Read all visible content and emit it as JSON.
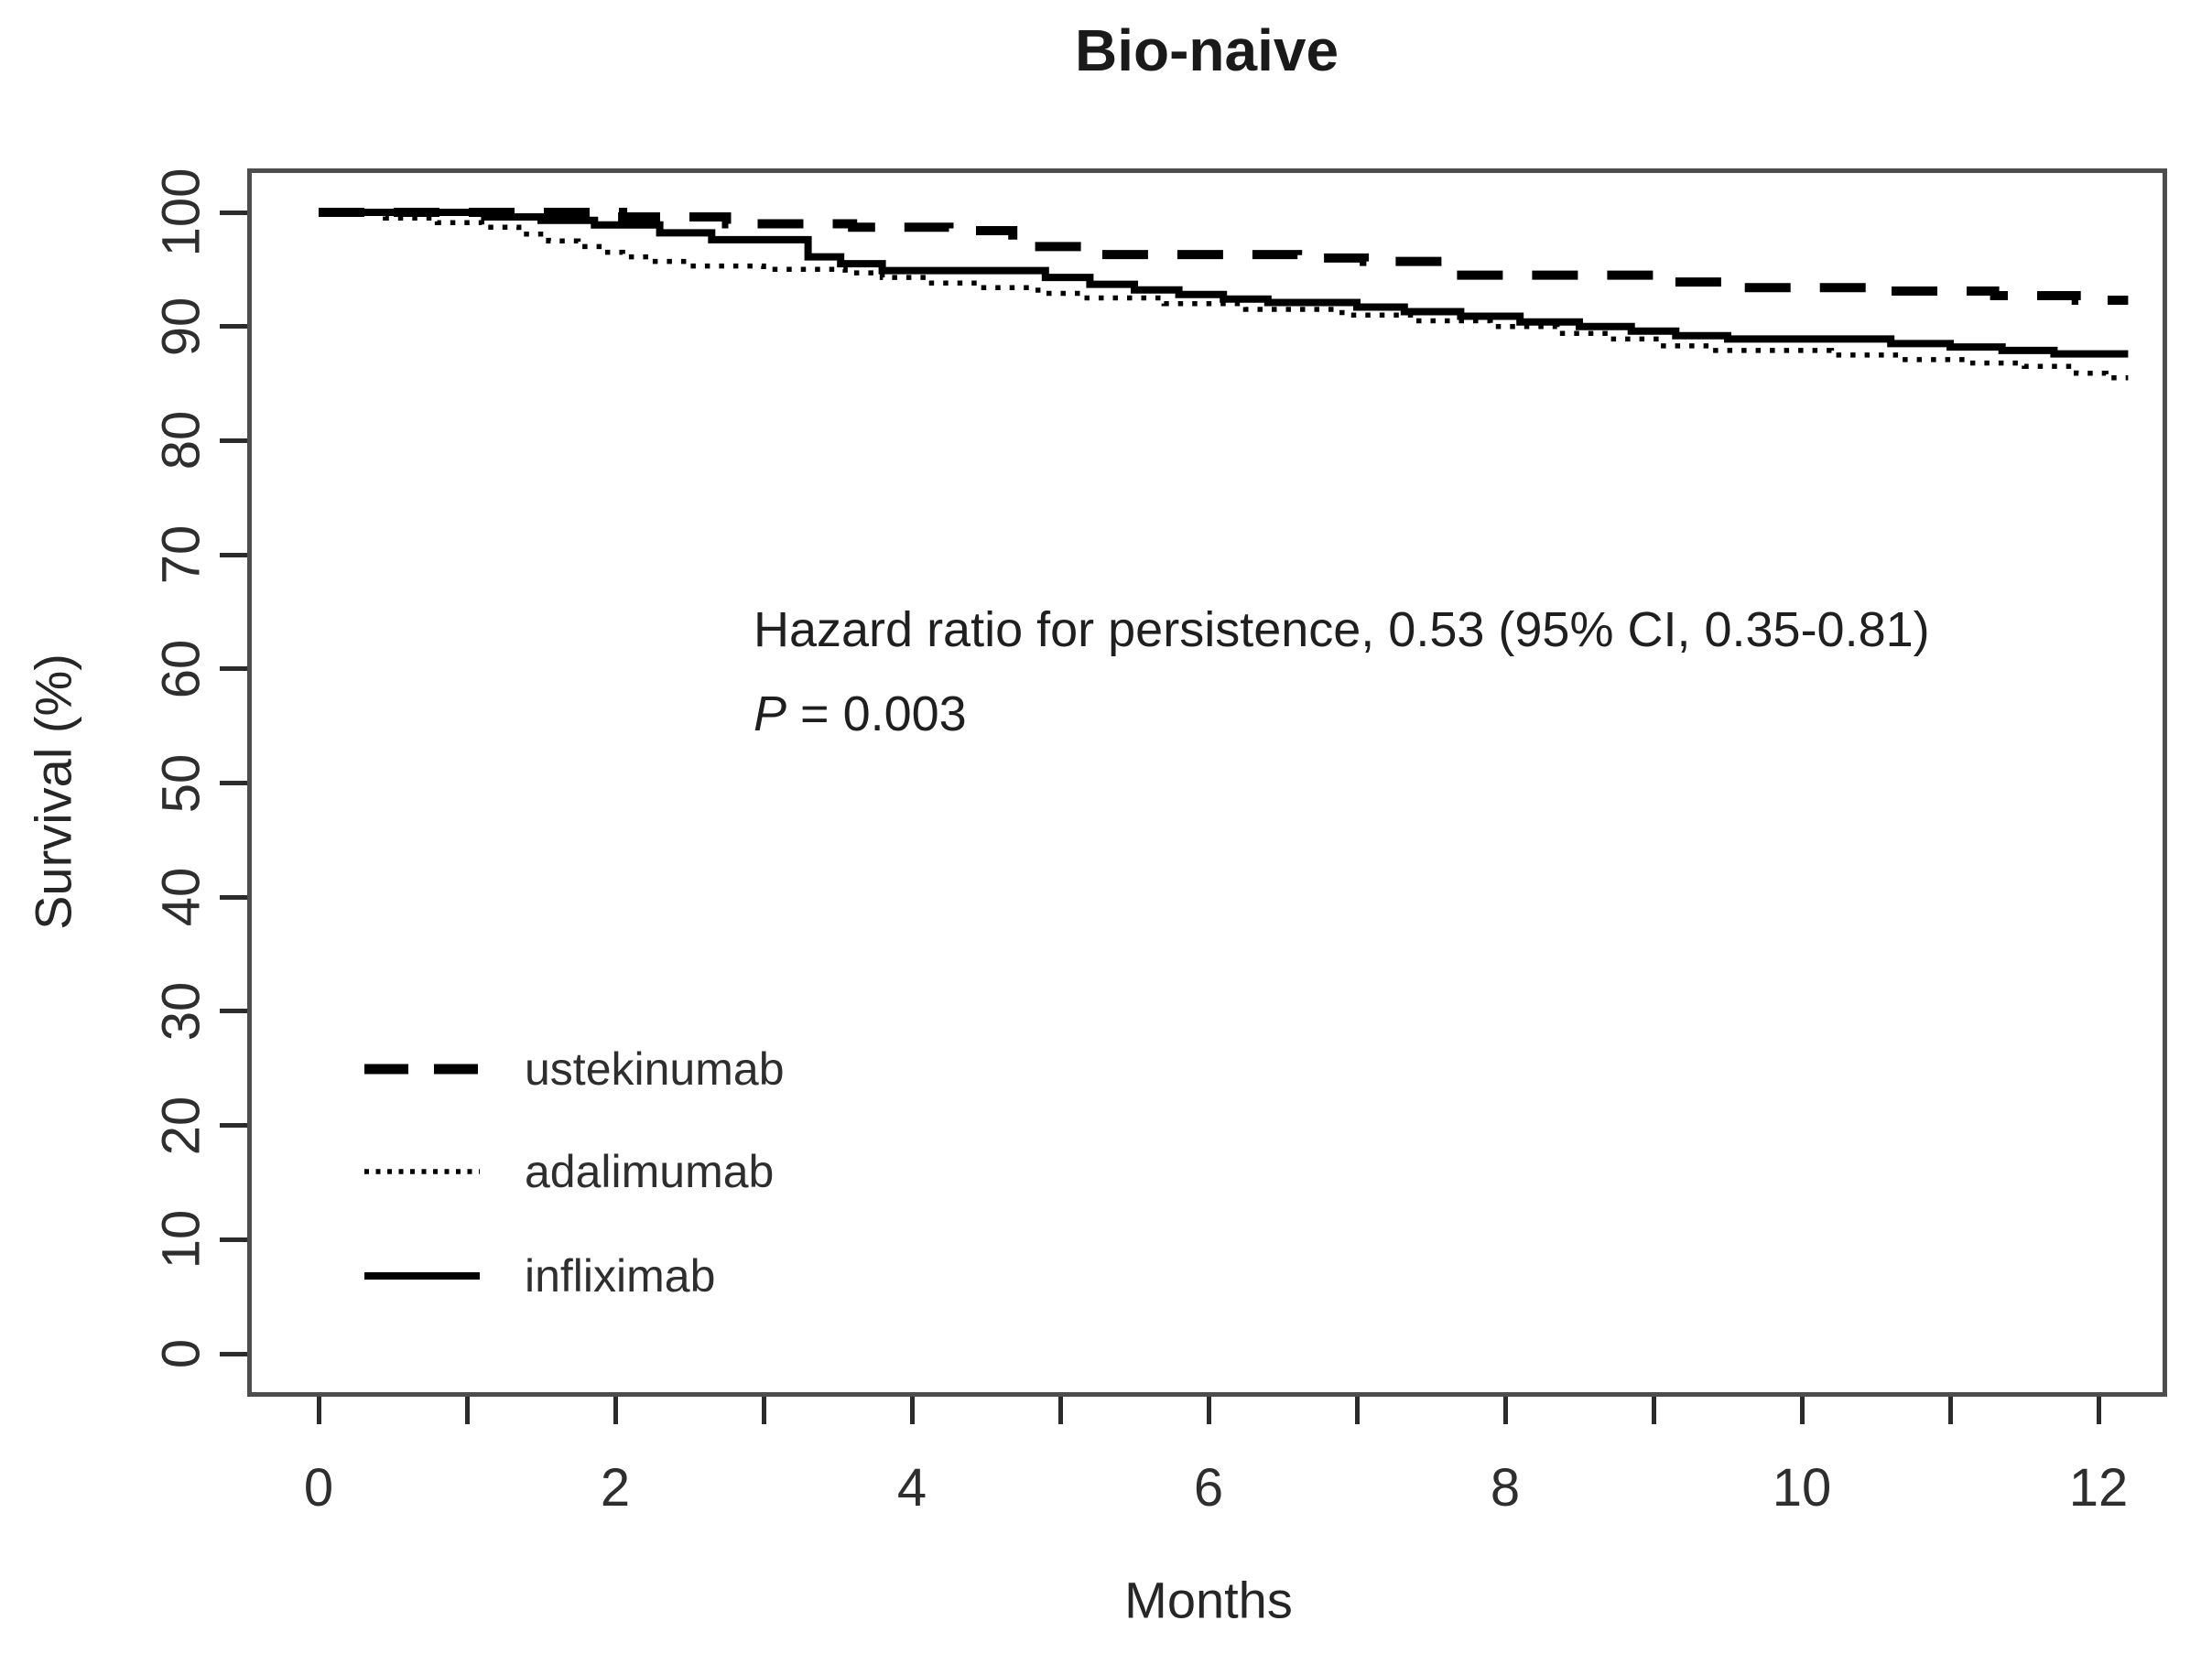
{
  "colors": {
    "curve": "#000000",
    "box_border": "#4d4d4d",
    "tick": "#2b2b2b",
    "text": "#262626",
    "background": "#ffffff"
  },
  "annotation": {
    "line1": "Hazard ratio for persistence, 0.53 (95% CI, 0.35-0.81)",
    "p_label": "P",
    "p_rest": " = 0.003"
  },
  "legend": {
    "position": "inside-bottom-left",
    "items": [
      {
        "label": "ustekinumab",
        "line_style": "dashed"
      },
      {
        "label": "adalimumab",
        "line_style": "dotted"
      },
      {
        "label": "infliximab",
        "line_style": "solid"
      }
    ]
  },
  "chart_data": {
    "type": "line",
    "subtype": "kaplan-meier-step",
    "title": "Bio-naive",
    "xlabel": "Months",
    "ylabel": "Survival (%)",
    "xlim": [
      0,
      12
    ],
    "ylim": [
      0,
      100
    ],
    "grid": false,
    "legend_position": "inside-bottom-left",
    "x_ticks": [
      {
        "v": 0,
        "label": "0"
      },
      {
        "v": 1,
        "label": ""
      },
      {
        "v": 2,
        "label": "2"
      },
      {
        "v": 3,
        "label": ""
      },
      {
        "v": 4,
        "label": "4"
      },
      {
        "v": 5,
        "label": ""
      },
      {
        "v": 6,
        "label": "6"
      },
      {
        "v": 7,
        "label": ""
      },
      {
        "v": 8,
        "label": "8"
      },
      {
        "v": 9,
        "label": ""
      },
      {
        "v": 10,
        "label": "10"
      },
      {
        "v": 11,
        "label": ""
      },
      {
        "v": 12,
        "label": "12"
      }
    ],
    "y_ticks": [
      {
        "v": 0,
        "label": "0"
      },
      {
        "v": 10,
        "label": "10"
      },
      {
        "v": 20,
        "label": "20"
      },
      {
        "v": 30,
        "label": "30"
      },
      {
        "v": 40,
        "label": "40"
      },
      {
        "v": 50,
        "label": "50"
      },
      {
        "v": 60,
        "label": "60"
      },
      {
        "v": 70,
        "label": "70"
      },
      {
        "v": 80,
        "label": "80"
      },
      {
        "v": 90,
        "label": "90"
      },
      {
        "v": 100,
        "label": "100"
      }
    ],
    "x_end": 12.2,
    "series": [
      {
        "name": "ustekinumab",
        "line_style": "dashed",
        "points": [
          [
            0,
            100
          ],
          [
            2.05,
            99.6
          ],
          [
            2.75,
            99.0
          ],
          [
            3.6,
            98.7
          ],
          [
            4.25,
            98.4
          ],
          [
            4.68,
            97.0
          ],
          [
            5.25,
            96.3
          ],
          [
            6.6,
            96.0
          ],
          [
            7.05,
            95.7
          ],
          [
            7.62,
            94.5
          ],
          [
            9.1,
            93.9
          ],
          [
            9.55,
            93.4
          ],
          [
            10.5,
            93.1
          ],
          [
            11.3,
            92.7
          ],
          [
            11.85,
            92.3
          ]
        ]
      },
      {
        "name": "adalimumab",
        "line_style": "dotted",
        "points": [
          [
            0,
            100
          ],
          [
            0.45,
            99.5
          ],
          [
            0.8,
            99.1
          ],
          [
            1.1,
            98.7
          ],
          [
            1.35,
            98.1
          ],
          [
            1.55,
            97.5
          ],
          [
            1.75,
            97.0
          ],
          [
            1.92,
            96.5
          ],
          [
            2.05,
            96.1
          ],
          [
            2.25,
            95.7
          ],
          [
            2.5,
            95.3
          ],
          [
            3.0,
            95.0
          ],
          [
            3.55,
            94.7
          ],
          [
            3.8,
            94.3
          ],
          [
            4.1,
            93.8
          ],
          [
            4.45,
            93.4
          ],
          [
            4.85,
            92.9
          ],
          [
            5.15,
            92.5
          ],
          [
            5.7,
            92.0
          ],
          [
            6.25,
            91.5
          ],
          [
            6.9,
            91.0
          ],
          [
            7.4,
            90.5
          ],
          [
            7.9,
            90.0
          ],
          [
            8.35,
            89.4
          ],
          [
            8.7,
            88.9
          ],
          [
            9.05,
            88.3
          ],
          [
            9.4,
            87.9
          ],
          [
            10.2,
            87.5
          ],
          [
            10.65,
            87.1
          ],
          [
            11.1,
            86.8
          ],
          [
            11.5,
            86.5
          ],
          [
            11.85,
            85.9
          ],
          [
            12.05,
            85.5
          ]
        ]
      },
      {
        "name": "infliximab",
        "line_style": "solid",
        "points": [
          [
            0,
            100
          ],
          [
            1.12,
            99.6
          ],
          [
            1.5,
            99.3
          ],
          [
            1.86,
            98.9
          ],
          [
            2.3,
            98.2
          ],
          [
            2.65,
            97.6
          ],
          [
            3.3,
            96.1
          ],
          [
            3.52,
            95.5
          ],
          [
            3.8,
            94.9
          ],
          [
            4.9,
            94.3
          ],
          [
            5.2,
            93.7
          ],
          [
            5.5,
            93.2
          ],
          [
            5.8,
            92.8
          ],
          [
            6.1,
            92.4
          ],
          [
            6.4,
            92.1
          ],
          [
            7.0,
            91.7
          ],
          [
            7.32,
            91.3
          ],
          [
            7.7,
            90.9
          ],
          [
            8.1,
            90.4
          ],
          [
            8.5,
            90.0
          ],
          [
            8.85,
            89.6
          ],
          [
            9.15,
            89.2
          ],
          [
            9.5,
            88.9
          ],
          [
            10.6,
            88.5
          ],
          [
            11.0,
            88.2
          ],
          [
            11.35,
            87.9
          ],
          [
            11.7,
            87.6
          ]
        ]
      }
    ]
  }
}
